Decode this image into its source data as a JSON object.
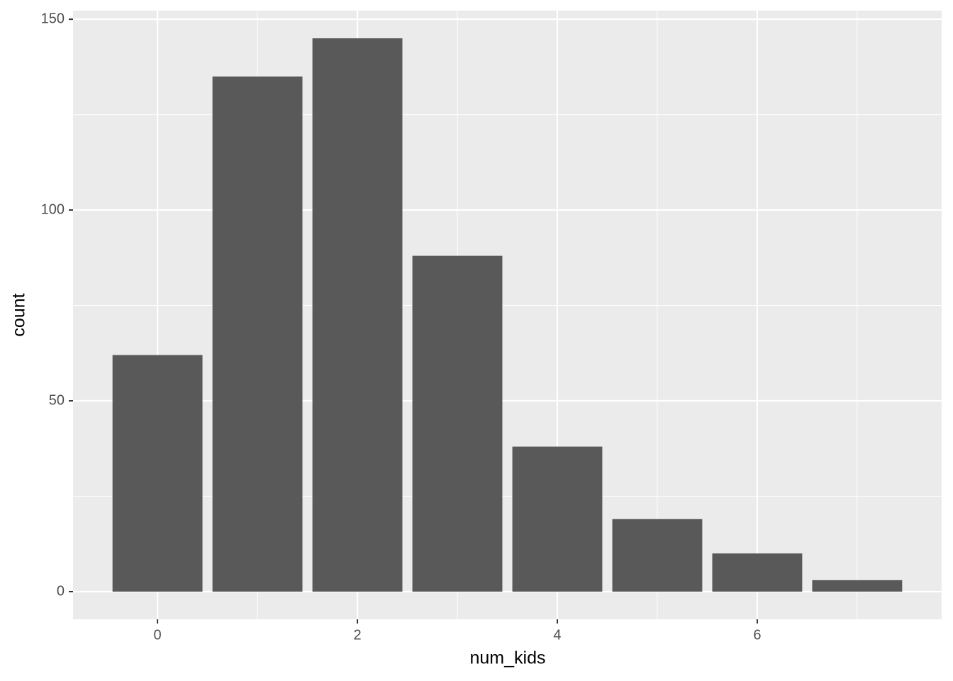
{
  "chart_data": {
    "type": "bar",
    "x_label": "num_kids",
    "y_label": "count",
    "x": [
      0,
      1,
      2,
      3,
      4,
      5,
      6,
      7
    ],
    "values": [
      62,
      135,
      145,
      88,
      38,
      19,
      10,
      3
    ],
    "color": "#595959",
    "xlim": [
      -0.845,
      7.845
    ],
    "xticks": [
      0,
      2,
      4,
      6
    ],
    "ylim": [
      -7.25,
      152.25
    ],
    "yticks": [
      0,
      50,
      100,
      150
    ],
    "grid": true
  }
}
